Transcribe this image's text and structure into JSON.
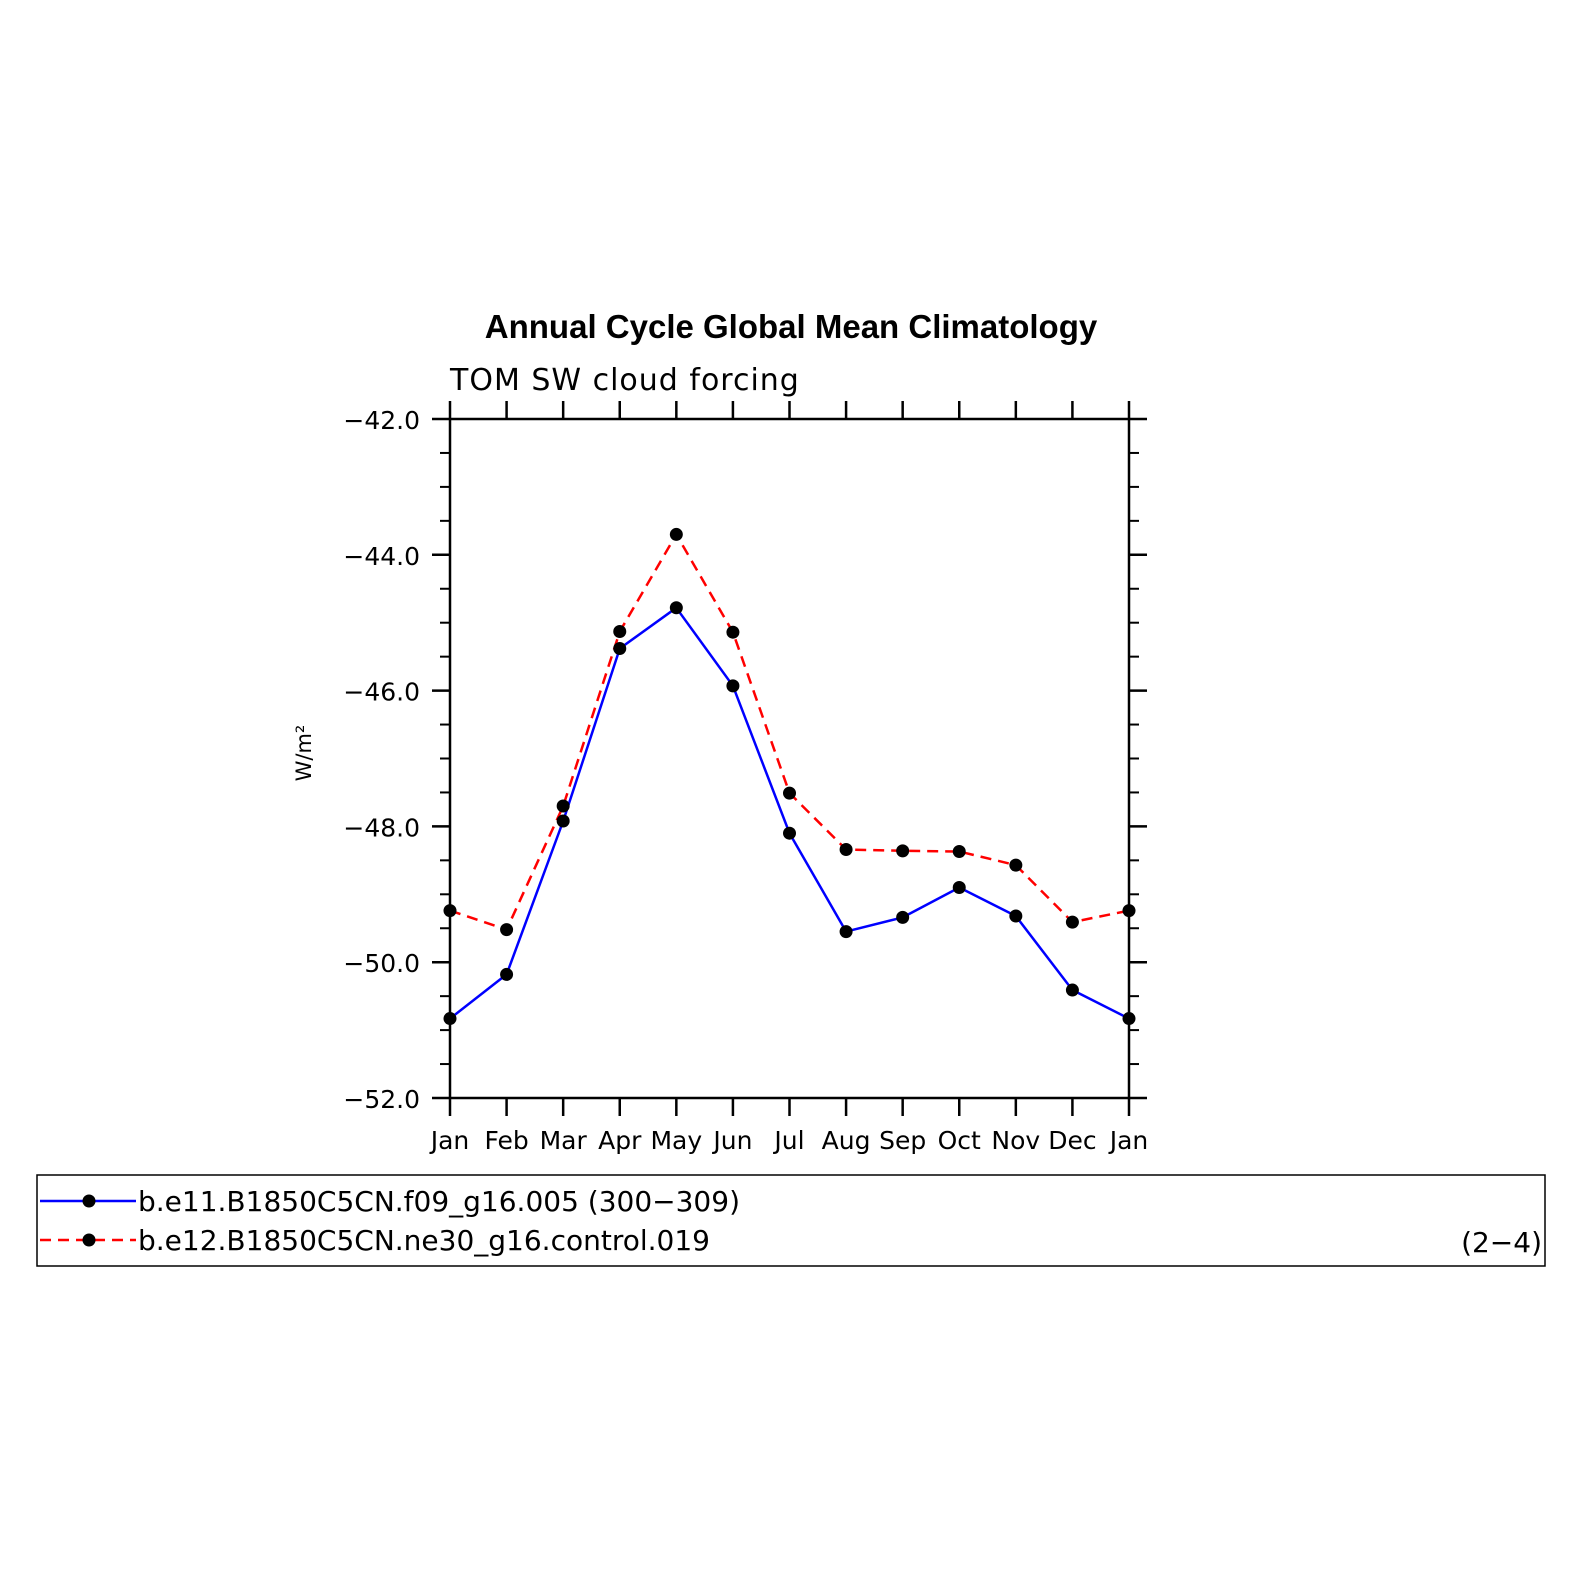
{
  "chart_data": {
    "type": "line",
    "title": "Annual Cycle Global Mean Climatology",
    "subtitle": "TOM SW cloud forcing",
    "xlabel": "",
    "ylabel": "W/m²",
    "categories": [
      "Jan",
      "Feb",
      "Mar",
      "Apr",
      "May",
      "Jun",
      "Jul",
      "Aug",
      "Sep",
      "Oct",
      "Nov",
      "Dec",
      "Jan"
    ],
    "ylim": [
      -52.0,
      -42.0
    ],
    "yticks": [
      "-42.0",
      "-44.0",
      "-46.0",
      "-48.0",
      "-50.0",
      "-52.0"
    ],
    "grid": false,
    "legend_position": "bottom",
    "series": [
      {
        "name": "b.e11.B1850C5CN.f09_g16.005 (300−309)",
        "color": "#0000ff",
        "line_style": "solid",
        "marker": "filled-circle",
        "values": [
          -50.83,
          -50.18,
          -47.92,
          -45.38,
          -44.78,
          -45.93,
          -48.1,
          -49.55,
          -49.34,
          -48.9,
          -49.32,
          -50.41,
          -50.83
        ]
      },
      {
        "name": "b.e12.B1850C5CN.ne30_g16.control.019",
        "color": "#ff0000",
        "line_style": "dashed",
        "marker": "filled-circle",
        "values": [
          -49.24,
          -49.52,
          -47.7,
          -45.13,
          -43.7,
          -45.14,
          -47.51,
          -48.34,
          -48.36,
          -48.37,
          -48.57,
          -49.41,
          -49.24
        ]
      }
    ],
    "legend_note": "(2−4)"
  }
}
